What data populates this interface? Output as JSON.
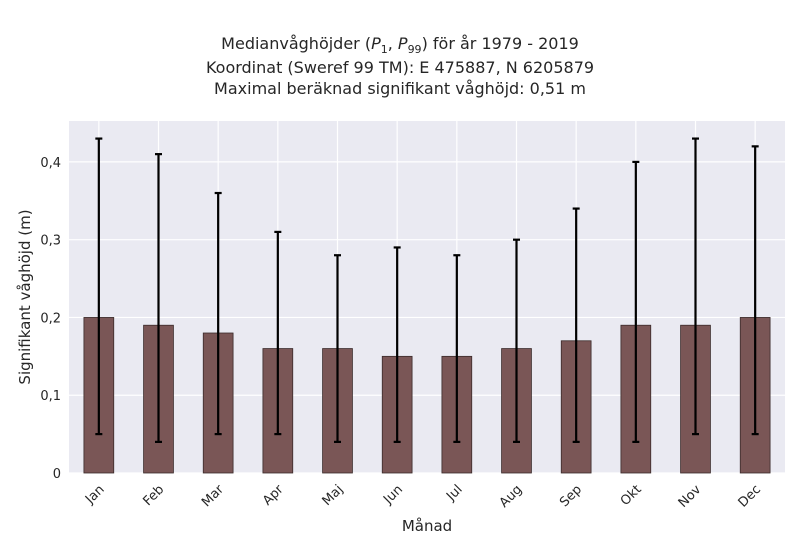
{
  "chart_data": {
    "type": "bar",
    "title_lines": [
      "Medianvåghöjder (P1, P99) för år 1979 - 2019",
      "Koordinat (Sweref 99 TM): E 475887, N 6205879",
      "Maximal beräknad signifikant våghöjd: 0,51 m"
    ],
    "xlabel": "Månad",
    "ylabel": "Signifikant våghöjd (m)",
    "categories": [
      "Jan",
      "Feb",
      "Mar",
      "Apr",
      "Maj",
      "Jun",
      "Jul",
      "Aug",
      "Sep",
      "Okt",
      "Nov",
      "Dec"
    ],
    "values": [
      0.2,
      0.19,
      0.18,
      0.16,
      0.16,
      0.15,
      0.15,
      0.16,
      0.17,
      0.19,
      0.19,
      0.2
    ],
    "lower": [
      0.05,
      0.04,
      0.05,
      0.05,
      0.04,
      0.04,
      0.04,
      0.04,
      0.04,
      0.04,
      0.05,
      0.05
    ],
    "upper": [
      0.43,
      0.41,
      0.36,
      0.31,
      0.28,
      0.29,
      0.28,
      0.3,
      0.34,
      0.4,
      0.43,
      0.42
    ],
    "yticks": [
      0,
      0.1,
      0.2,
      0.3,
      0.4
    ],
    "ytick_labels": [
      "0",
      "0,1",
      "0,2",
      "0,3",
      "0,4"
    ],
    "ylim": [
      0,
      0.4526
    ],
    "grid": true,
    "colors": {
      "bar": "#7a5656",
      "bar_edge": "#3a2a2a",
      "error": "#000000",
      "plot_bg": "#eaeaf2",
      "grid": "#ffffff"
    }
  }
}
